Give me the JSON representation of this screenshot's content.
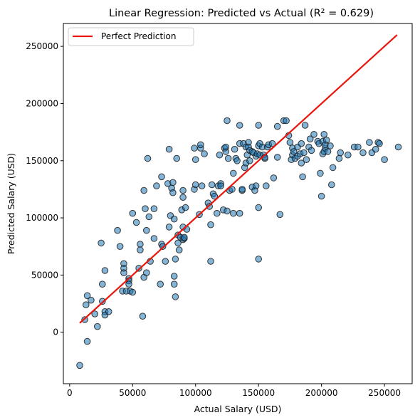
{
  "chart_data": {
    "type": "scatter",
    "title": "Linear Regression: Predicted vs Actual (R² = 0.629)",
    "xlabel": "Actual Salary (USD)",
    "ylabel": "Predicted Salary (USD)",
    "xlim": [
      -5000,
      272000
    ],
    "ylim": [
      -45000,
      270000
    ],
    "xticks": [
      0,
      50000,
      100000,
      150000,
      200000,
      250000
    ],
    "yticks": [
      0,
      50000,
      100000,
      150000,
      200000,
      250000
    ],
    "grid": false,
    "legend": {
      "placement": "top-left",
      "entries": [
        "Perfect Prediction"
      ]
    },
    "colors": {
      "points": "#1f77b4",
      "point_edge": "#1a1a1a",
      "line": "#e8160c"
    },
    "reference_line": {
      "name": "Perfect Prediction",
      "x": [
        8000,
        260000
      ],
      "y": [
        8000,
        260000
      ]
    },
    "points": [
      [
        8000,
        -29000
      ],
      [
        12000,
        11000
      ],
      [
        13000,
        24000
      ],
      [
        14000,
        -8000
      ],
      [
        14000,
        32000
      ],
      [
        17000,
        28000
      ],
      [
        20000,
        16000
      ],
      [
        22000,
        5000
      ],
      [
        25000,
        78000
      ],
      [
        26000,
        27000
      ],
      [
        26000,
        42000
      ],
      [
        28000,
        18000
      ],
      [
        28000,
        15000
      ],
      [
        28000,
        54000
      ],
      [
        31000,
        18000
      ],
      [
        38000,
        89000
      ],
      [
        40000,
        75000
      ],
      [
        42000,
        36000
      ],
      [
        43000,
        60000
      ],
      [
        43000,
        56000
      ],
      [
        43000,
        52000
      ],
      [
        45000,
        36000
      ],
      [
        47000,
        47000
      ],
      [
        47000,
        45000
      ],
      [
        47000,
        42000
      ],
      [
        48000,
        36000
      ],
      [
        50000,
        104000
      ],
      [
        50000,
        35000
      ],
      [
        53000,
        96000
      ],
      [
        55000,
        56000
      ],
      [
        56000,
        72000
      ],
      [
        56000,
        77000
      ],
      [
        58000,
        14000
      ],
      [
        59000,
        124000
      ],
      [
        59000,
        48000
      ],
      [
        60000,
        108000
      ],
      [
        61000,
        89000
      ],
      [
        61000,
        52000
      ],
      [
        62000,
        152000
      ],
      [
        63000,
        101000
      ],
      [
        64000,
        62000
      ],
      [
        67000,
        82000
      ],
      [
        67000,
        108000
      ],
      [
        69000,
        128000
      ],
      [
        72000,
        42000
      ],
      [
        73000,
        77000
      ],
      [
        73000,
        136000
      ],
      [
        74000,
        75000
      ],
      [
        76000,
        62000
      ],
      [
        78000,
        130000
      ],
      [
        79000,
        160000
      ],
      [
        79000,
        92000
      ],
      [
        80000,
        102000
      ],
      [
        81000,
        126000
      ],
      [
        82000,
        131000
      ],
      [
        82000,
        122000
      ],
      [
        83000,
        99000
      ],
      [
        83000,
        49000
      ],
      [
        83000,
        42000
      ],
      [
        84000,
        31000
      ],
      [
        84000,
        64000
      ],
      [
        85000,
        152000
      ],
      [
        86000,
        78000
      ],
      [
        86000,
        85000
      ],
      [
        87000,
        72000
      ],
      [
        88000,
        83000
      ],
      [
        89000,
        107000
      ],
      [
        90000,
        124000
      ],
      [
        90000,
        118000
      ],
      [
        90000,
        92000
      ],
      [
        90000,
        81000
      ],
      [
        91000,
        82000
      ],
      [
        91000,
        83000
      ],
      [
        92000,
        109000
      ],
      [
        93000,
        90000
      ],
      [
        99000,
        125000
      ],
      [
        99000,
        161000
      ],
      [
        100000,
        129000
      ],
      [
        100000,
        151000
      ],
      [
        103000,
        103000
      ],
      [
        104000,
        161000
      ],
      [
        104000,
        164000
      ],
      [
        105000,
        128000
      ],
      [
        107000,
        156000
      ],
      [
        110000,
        113000
      ],
      [
        111000,
        110000
      ],
      [
        112000,
        62000
      ],
      [
        112000,
        94000
      ],
      [
        113000,
        129000
      ],
      [
        114000,
        121000
      ],
      [
        115000,
        119000
      ],
      [
        117000,
        104000
      ],
      [
        118000,
        128000
      ],
      [
        119000,
        155000
      ],
      [
        120000,
        130000
      ],
      [
        120000,
        128000
      ],
      [
        122000,
        107000
      ],
      [
        123000,
        161000
      ],
      [
        124000,
        158000
      ],
      [
        124000,
        162000
      ],
      [
        125000,
        185000
      ],
      [
        125000,
        106000
      ],
      [
        126000,
        152000
      ],
      [
        127000,
        124000
      ],
      [
        129000,
        125000
      ],
      [
        130000,
        104000
      ],
      [
        130000,
        139000
      ],
      [
        131000,
        160000
      ],
      [
        132000,
        152000
      ],
      [
        133000,
        150000
      ],
      [
        135000,
        104000
      ],
      [
        135000,
        165000
      ],
      [
        135000,
        181000
      ],
      [
        137000,
        124000
      ],
      [
        137000,
        125000
      ],
      [
        138000,
        165000
      ],
      [
        139000,
        144000
      ],
      [
        140000,
        162000
      ],
      [
        140000,
        148000
      ],
      [
        141000,
        155000
      ],
      [
        142000,
        166000
      ],
      [
        142000,
        162000
      ],
      [
        143000,
        159000
      ],
      [
        143000,
        150000
      ],
      [
        145000,
        127000
      ],
      [
        145000,
        158000
      ],
      [
        146000,
        157000
      ],
      [
        147000,
        124000
      ],
      [
        148000,
        128000
      ],
      [
        148000,
        154000
      ],
      [
        149000,
        156000
      ],
      [
        150000,
        181000
      ],
      [
        150000,
        163000
      ],
      [
        150000,
        109000
      ],
      [
        150000,
        64000
      ],
      [
        151000,
        155000
      ],
      [
        151000,
        165000
      ],
      [
        153000,
        162000
      ],
      [
        154000,
        155000
      ],
      [
        155000,
        152000
      ],
      [
        155000,
        153000
      ],
      [
        156000,
        128000
      ],
      [
        157000,
        162000
      ],
      [
        158000,
        164000
      ],
      [
        161000,
        165000
      ],
      [
        162000,
        135000
      ],
      [
        165000,
        153000
      ],
      [
        165000,
        180000
      ],
      [
        167000,
        103000
      ],
      [
        170000,
        185000
      ],
      [
        172000,
        185000
      ],
      [
        174000,
        172000
      ],
      [
        175000,
        166000
      ],
      [
        176000,
        151000
      ],
      [
        177000,
        155000
      ],
      [
        177000,
        161000
      ],
      [
        178000,
        158000
      ],
      [
        179000,
        152000
      ],
      [
        181000,
        154000
      ],
      [
        181000,
        162000
      ],
      [
        183000,
        156000
      ],
      [
        184000,
        148000
      ],
      [
        184000,
        165000
      ],
      [
        185000,
        136000
      ],
      [
        186000,
        157000
      ],
      [
        187000,
        181000
      ],
      [
        188000,
        151000
      ],
      [
        190000,
        162000
      ],
      [
        191000,
        169000
      ],
      [
        192000,
        159000
      ],
      [
        194000,
        173000
      ],
      [
        197000,
        167000
      ],
      [
        198000,
        165000
      ],
      [
        199000,
        139000
      ],
      [
        200000,
        119000
      ],
      [
        201000,
        167000
      ],
      [
        201000,
        156000
      ],
      [
        202000,
        173000
      ],
      [
        202000,
        158000
      ],
      [
        203000,
        161000
      ],
      [
        203000,
        164000
      ],
      [
        204000,
        168000
      ],
      [
        205000,
        158000
      ],
      [
        207000,
        163000
      ],
      [
        208000,
        129000
      ],
      [
        209000,
        144000
      ],
      [
        214000,
        152000
      ],
      [
        215000,
        157000
      ],
      [
        221000,
        155000
      ],
      [
        226000,
        162000
      ],
      [
        229000,
        162000
      ],
      [
        233000,
        157000
      ],
      [
        238000,
        166000
      ],
      [
        240000,
        157000
      ],
      [
        243000,
        160000
      ],
      [
        245000,
        166000
      ],
      [
        246000,
        165000
      ],
      [
        250000,
        151000
      ],
      [
        261000,
        162000
      ]
    ]
  }
}
